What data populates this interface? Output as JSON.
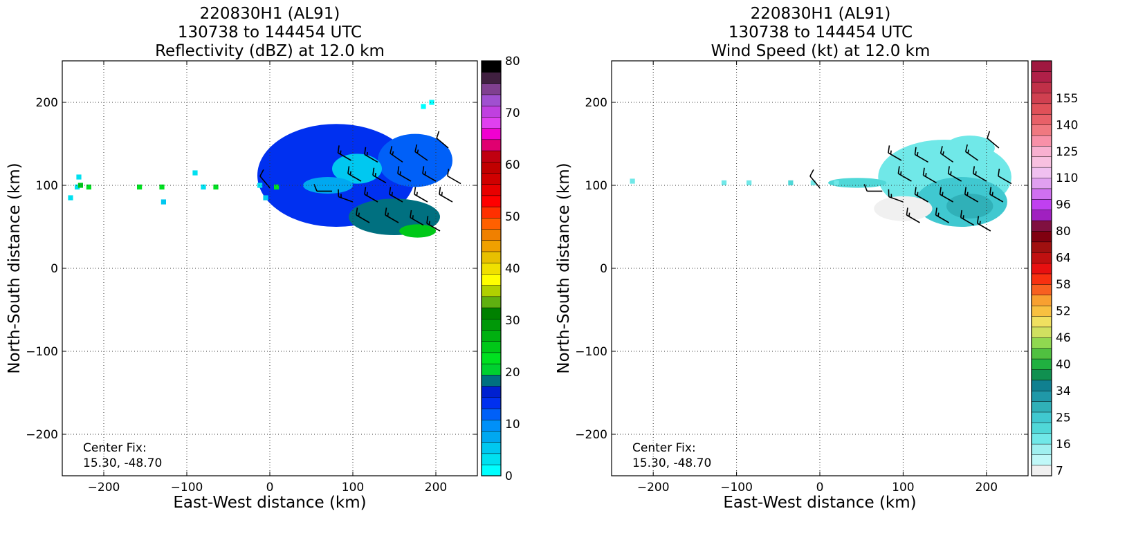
{
  "chart_data": [
    {
      "type": "heatmap",
      "title_lines": [
        "220830H1 (AL91)",
        "130738 to 144454 UTC",
        "Reflectivity (dBZ) at 12.0 km"
      ],
      "xlabel": "East-West distance (km)",
      "ylabel": "North-South distance (km)",
      "xlim": [
        -250,
        250
      ],
      "ylim": [
        -250,
        250
      ],
      "xticks": [
        -200,
        -100,
        0,
        100,
        200
      ],
      "xtick_labels": [
        "−200",
        "−100",
        "0",
        "100",
        "200"
      ],
      "yticks": [
        -200,
        -100,
        0,
        100,
        200
      ],
      "ytick_labels": [
        "−200",
        "−100",
        "0",
        "100",
        "200"
      ],
      "grid": true,
      "annotation": [
        "Center Fix:",
        "15.30, -48.70"
      ],
      "colorbar": {
        "ticks": [
          "0",
          "10",
          "20",
          "30",
          "40",
          "50",
          "60",
          "70",
          "80"
        ],
        "colors": [
          "#00ffff",
          "#00e0f0",
          "#00c8f0",
          "#00a8f0",
          "#0090f8",
          "#0060f8",
          "#0030f0",
          "#0020d0",
          "#007080",
          "#00d030",
          "#00e020",
          "#00c818",
          "#00b010",
          "#009808",
          "#008000",
          "#60b010",
          "#b0d000",
          "#ffff00",
          "#f0e000",
          "#e8c000",
          "#f0a000",
          "#f08000",
          "#ff6000",
          "#ff3000",
          "#ff0000",
          "#e80000",
          "#d00000",
          "#c00000",
          "#c00010",
          "#e00070",
          "#f000d0",
          "#e040f0",
          "#c040e0",
          "#a050d0",
          "#804090",
          "#402040",
          "#000000"
        ]
      },
      "regions": [
        {
          "x": 80,
          "y": 112,
          "rx": 95,
          "ry": 62,
          "color": "#0030f0"
        },
        {
          "x": 175,
          "y": 130,
          "rx": 45,
          "ry": 32,
          "color": "#0060f8"
        },
        {
          "x": 105,
          "y": 120,
          "rx": 30,
          "ry": 18,
          "color": "#00c8f0"
        },
        {
          "x": 70,
          "y": 100,
          "rx": 30,
          "ry": 10,
          "color": "#00a8f0"
        },
        {
          "x": 150,
          "y": 62,
          "rx": 55,
          "ry": 22,
          "color": "#007080"
        },
        {
          "x": 178,
          "y": 45,
          "rx": 22,
          "ry": 8,
          "color": "#00c818"
        }
      ],
      "points": [
        {
          "x": -232,
          "y": 98,
          "color": "#00e0f0"
        },
        {
          "x": -228,
          "y": 100,
          "color": "#00c818"
        },
        {
          "x": -218,
          "y": 98,
          "color": "#00e020"
        },
        {
          "x": -230,
          "y": 110,
          "color": "#00e0f0"
        },
        {
          "x": -240,
          "y": 85,
          "color": "#00e0f0"
        },
        {
          "x": -157,
          "y": 98,
          "color": "#00e020"
        },
        {
          "x": -130,
          "y": 98,
          "color": "#00e020"
        },
        {
          "x": -128,
          "y": 80,
          "color": "#00c8f0"
        },
        {
          "x": -90,
          "y": 115,
          "color": "#00e0f0"
        },
        {
          "x": -80,
          "y": 98,
          "color": "#00e0f0"
        },
        {
          "x": -65,
          "y": 98,
          "color": "#00e020"
        },
        {
          "x": -12,
          "y": 100,
          "color": "#00e0f0"
        },
        {
          "x": -5,
          "y": 85,
          "color": "#00c8f0"
        },
        {
          "x": 8,
          "y": 98,
          "color": "#00e020"
        },
        {
          "x": 185,
          "y": 195,
          "color": "#00ffff"
        },
        {
          "x": 195,
          "y": 200,
          "color": "#00ffff"
        }
      ],
      "barbs": [
        {
          "x": 0,
          "y": 97,
          "dir": 320,
          "spd": 10
        },
        {
          "x": 75,
          "y": 93,
          "dir": 270,
          "spd": 10
        },
        {
          "x": 98,
          "y": 130,
          "dir": 300,
          "spd": 15
        },
        {
          "x": 130,
          "y": 128,
          "dir": 300,
          "spd": 15
        },
        {
          "x": 160,
          "y": 128,
          "dir": 305,
          "spd": 15
        },
        {
          "x": 190,
          "y": 130,
          "dir": 305,
          "spd": 15
        },
        {
          "x": 215,
          "y": 145,
          "dir": 310,
          "spd": 10
        },
        {
          "x": 110,
          "y": 105,
          "dir": 300,
          "spd": 15
        },
        {
          "x": 140,
          "y": 103,
          "dir": 300,
          "spd": 15
        },
        {
          "x": 170,
          "y": 105,
          "dir": 300,
          "spd": 15
        },
        {
          "x": 200,
          "y": 105,
          "dir": 300,
          "spd": 15
        },
        {
          "x": 230,
          "y": 102,
          "dir": 300,
          "spd": 10
        },
        {
          "x": 100,
          "y": 80,
          "dir": 290,
          "spd": 15
        },
        {
          "x": 130,
          "y": 80,
          "dir": 300,
          "spd": 15
        },
        {
          "x": 160,
          "y": 80,
          "dir": 300,
          "spd": 15
        },
        {
          "x": 190,
          "y": 80,
          "dir": 300,
          "spd": 15
        },
        {
          "x": 220,
          "y": 80,
          "dir": 300,
          "spd": 15
        },
        {
          "x": 120,
          "y": 55,
          "dir": 300,
          "spd": 15
        },
        {
          "x": 155,
          "y": 55,
          "dir": 300,
          "spd": 15
        },
        {
          "x": 185,
          "y": 52,
          "dir": 300,
          "spd": 15
        },
        {
          "x": 205,
          "y": 45,
          "dir": 300,
          "spd": 15
        }
      ]
    },
    {
      "type": "heatmap",
      "title_lines": [
        "220830H1 (AL91)",
        "130738 to 144454 UTC",
        "Wind Speed (kt) at 12.0 km"
      ],
      "xlabel": "East-West distance (km)",
      "ylabel": "North-South distance (km)",
      "xlim": [
        -250,
        250
      ],
      "ylim": [
        -250,
        250
      ],
      "xticks": [
        -200,
        -100,
        0,
        100,
        200
      ],
      "xtick_labels": [
        "−200",
        "−100",
        "0",
        "100",
        "200"
      ],
      "yticks": [
        -200,
        -100,
        0,
        100,
        200
      ],
      "ytick_labels": [
        "−200",
        "−100",
        "0",
        "100",
        "200"
      ],
      "grid": true,
      "annotation": [
        "Center Fix:",
        "15.30, -48.70"
      ],
      "colorbar": {
        "ticks": [
          "7",
          "16",
          "25",
          "34",
          "40",
          "46",
          "52",
          "58",
          "64",
          "80",
          "96",
          "110",
          "125",
          "140",
          "155"
        ],
        "colors": [
          "#f0f0f0",
          "#c0f8f8",
          "#a0f0f0",
          "#70e8e8",
          "#50d8d8",
          "#40c8d0",
          "#30b0b8",
          "#2098a8",
          "#108090",
          "#109050",
          "#20b040",
          "#50c040",
          "#90d850",
          "#d0e060",
          "#f0e060",
          "#f8c040",
          "#f8a030",
          "#f86020",
          "#f83010",
          "#e81010",
          "#c01010",
          "#a01010",
          "#800010",
          "#801040",
          "#a020c0",
          "#c040f0",
          "#d070f0",
          "#e0a0f0",
          "#f0c0f0",
          "#f8c0e0",
          "#f8b0d0",
          "#f890a8",
          "#f07880",
          "#e86068",
          "#e05058",
          "#d04050",
          "#c03048",
          "#b02048",
          "#a01840"
        ]
      },
      "regions": [
        {
          "x": 150,
          "y": 110,
          "rx": 80,
          "ry": 45,
          "color": "#70e8e8"
        },
        {
          "x": 170,
          "y": 80,
          "rx": 55,
          "ry": 30,
          "color": "#40c8d0"
        },
        {
          "x": 180,
          "y": 75,
          "rx": 28,
          "ry": 15,
          "color": "#30b0b8"
        },
        {
          "x": 100,
          "y": 72,
          "rx": 35,
          "ry": 15,
          "color": "#f0f0f0"
        },
        {
          "x": 45,
          "y": 103,
          "rx": 35,
          "ry": 6,
          "color": "#50d8d8"
        },
        {
          "x": 180,
          "y": 145,
          "rx": 30,
          "ry": 15,
          "color": "#70e8e8"
        }
      ],
      "points": [
        {
          "x": -225,
          "y": 105,
          "color": "#70e8e8"
        },
        {
          "x": -115,
          "y": 103,
          "color": "#70e8e8"
        },
        {
          "x": -85,
          "y": 103,
          "color": "#70e8e8"
        },
        {
          "x": -35,
          "y": 103,
          "color": "#50d8d8"
        },
        {
          "x": -8,
          "y": 103,
          "color": "#70e8e8"
        },
        {
          "x": 20,
          "y": 103,
          "color": "#70e8e8"
        }
      ],
      "barbs": [
        {
          "x": 0,
          "y": 97,
          "dir": 320,
          "spd": 10
        },
        {
          "x": 75,
          "y": 93,
          "dir": 270,
          "spd": 10
        },
        {
          "x": 98,
          "y": 130,
          "dir": 300,
          "spd": 15
        },
        {
          "x": 130,
          "y": 128,
          "dir": 300,
          "spd": 15
        },
        {
          "x": 160,
          "y": 128,
          "dir": 305,
          "spd": 15
        },
        {
          "x": 190,
          "y": 130,
          "dir": 305,
          "spd": 15
        },
        {
          "x": 215,
          "y": 145,
          "dir": 310,
          "spd": 10
        },
        {
          "x": 110,
          "y": 105,
          "dir": 300,
          "spd": 15
        },
        {
          "x": 140,
          "y": 103,
          "dir": 300,
          "spd": 15
        },
        {
          "x": 170,
          "y": 105,
          "dir": 300,
          "spd": 15
        },
        {
          "x": 200,
          "y": 105,
          "dir": 300,
          "spd": 15
        },
        {
          "x": 230,
          "y": 102,
          "dir": 300,
          "spd": 10
        },
        {
          "x": 100,
          "y": 80,
          "dir": 290,
          "spd": 15
        },
        {
          "x": 130,
          "y": 80,
          "dir": 300,
          "spd": 15
        },
        {
          "x": 160,
          "y": 80,
          "dir": 300,
          "spd": 15
        },
        {
          "x": 190,
          "y": 80,
          "dir": 300,
          "spd": 15
        },
        {
          "x": 220,
          "y": 80,
          "dir": 300,
          "spd": 15
        },
        {
          "x": 120,
          "y": 55,
          "dir": 300,
          "spd": 15
        },
        {
          "x": 155,
          "y": 55,
          "dir": 300,
          "spd": 15
        },
        {
          "x": 185,
          "y": 52,
          "dir": 300,
          "spd": 15
        },
        {
          "x": 205,
          "y": 45,
          "dir": 300,
          "spd": 15
        }
      ]
    }
  ]
}
